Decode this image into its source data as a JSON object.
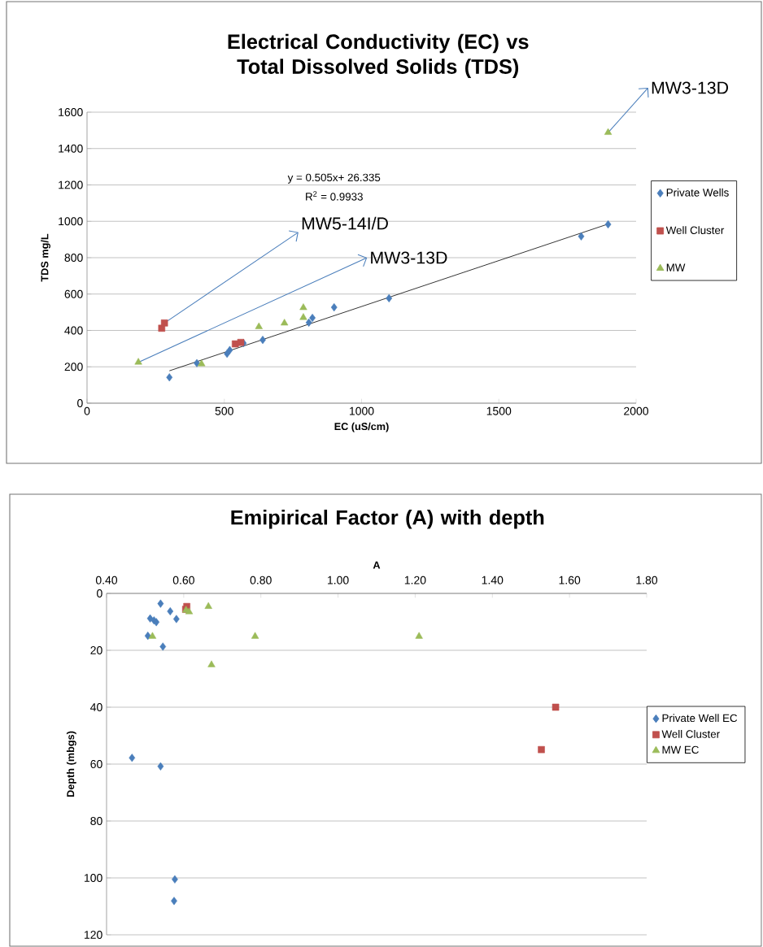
{
  "chart_data": [
    {
      "type": "scatter",
      "title": "Electrical Conductivity (EC) vs Total Dissolved Solids (TDS)",
      "xlabel": "EC (uS/cm)",
      "ylabel": "TDS mg/L",
      "xlim": [
        0,
        2000
      ],
      "xticks": [
        0,
        500,
        1000,
        1500,
        2000
      ],
      "ylim": [
        0,
        1600
      ],
      "yticks": [
        0,
        200,
        400,
        600,
        800,
        1000,
        1200,
        1400,
        1600
      ],
      "grid": "y",
      "legend": "right",
      "series": [
        {
          "name": "Private Wells",
          "color": "#4a7ebb",
          "marker": "diamond",
          "x": [
            300,
            400,
            510,
            520,
            570,
            640,
            808,
            821,
            900,
            1100,
            1800,
            1898
          ],
          "values": [
            142,
            220,
            272,
            292,
            330,
            348,
            443,
            469,
            527,
            577,
            917,
            983
          ]
        },
        {
          "name": "Well Cluster",
          "color": "#c0504d",
          "marker": "square",
          "x": [
            272,
            282,
            540,
            560
          ],
          "values": [
            412,
            441,
            326,
            334
          ]
        },
        {
          "name": "MW",
          "color": "#9bbb59",
          "marker": "triangle",
          "x": [
            187,
            417,
            626,
            719,
            788,
            788,
            1898
          ],
          "values": [
            225,
            216,
            420,
            440,
            525,
            471,
            1488
          ]
        },
        {
          "type": "line",
          "color": "#000000",
          "marker": "none",
          "line_style": "solid",
          "x": [
            300,
            1900
          ],
          "values": [
            178,
            986
          ]
        }
      ],
      "annotations": [
        "y = 0.505x+ 26.335",
        "R$^{2}$ = 0.9933",
        {
          "text": "MW5-14I/D",
          "x": 282,
          "y": 441
        },
        {
          "text": "MW3-13D",
          "x": 187,
          "y": 225
        },
        {
          "text": "MW3-13D",
          "x": 1898,
          "y": 1488
        }
      ]
    },
    {
      "type": "scatter",
      "title": "Emipirical Factor (A) with depth",
      "xlabel": "A",
      "ylabel": "Depth (mbgs)",
      "xlim": [
        0.4,
        1.8
      ],
      "xticks": [
        {
          "value": 0.4,
          "label": "0.40"
        },
        {
          "value": 0.6,
          "label": "0.60"
        },
        {
          "value": 0.8,
          "label": "0.80"
        },
        {
          "value": 1.0,
          "label": "1.00"
        },
        {
          "value": 1.2,
          "label": "1.20"
        },
        {
          "value": 1.4,
          "label": "1.40"
        },
        {
          "value": 1.6,
          "label": "1.60"
        },
        {
          "value": 1.8,
          "label": "1.80"
        }
      ],
      "ylim": [
        120,
        0
      ],
      "yticks": [
        0,
        20,
        40,
        60,
        80,
        100,
        120
      ],
      "grid": "y",
      "legend": "right",
      "series": [
        {
          "name": "Private Well EC",
          "color": "#4a7ebb",
          "marker": "diamond",
          "x": [
            0.54,
            0.565,
            0.581,
            0.513,
            0.523,
            0.529,
            0.507,
            0.546,
            0.466,
            0.54,
            0.577,
            0.575
          ],
          "values": [
            3.6,
            6.3,
            9.0,
            8.8,
            9.5,
            10.1,
            14.9,
            18.7,
            57.8,
            60.8,
            100.5,
            108.1
          ]
        },
        {
          "name": "Well Cluster",
          "color": "#c0504d",
          "marker": "square",
          "x": [
            0.608,
            0.605,
            1.564,
            1.527
          ],
          "values": [
            4.6,
            5.6,
            40.0,
            54.9
          ]
        },
        {
          "name": "MW EC",
          "color": "#9bbb59",
          "marker": "triangle",
          "x": [
            0.664,
            0.606,
            0.614,
            0.519,
            0.785,
            1.21,
            0.672
          ],
          "values": [
            4.6,
            5.9,
            6.5,
            15.1,
            15.1,
            15.1,
            25.1
          ]
        }
      ]
    }
  ]
}
